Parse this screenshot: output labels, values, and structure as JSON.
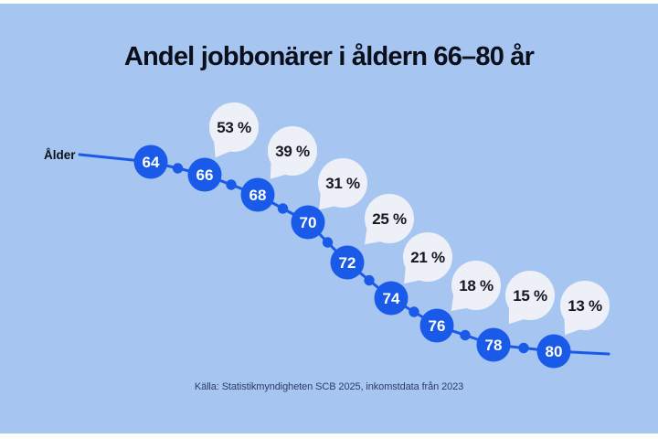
{
  "colors": {
    "background": "#a6c5f1",
    "frame": "#ffffff",
    "node_blue": "#1a5ae8",
    "line_blue": "#1a5ae8",
    "bubble_fill": "#eef0f8",
    "title_text": "#0b0f1a",
    "bubble_text": "#15181f",
    "node_text": "#ffffff",
    "source_text": "#2e3c63"
  },
  "chart_data": {
    "type": "line",
    "title": "Andel jobbonärer i åldern 66–80 år",
    "xlabel": "Ålder",
    "ylabel": "",
    "legend": null,
    "x_ticks": [
      "64",
      "66",
      "68",
      "70",
      "72",
      "74",
      "76",
      "78",
      "80"
    ],
    "points": [
      {
        "age": "64",
        "percent": null,
        "label": null
      },
      {
        "age": "66",
        "percent": 53,
        "label": "53 %"
      },
      {
        "age": "68",
        "percent": 39,
        "label": "39 %"
      },
      {
        "age": "70",
        "percent": 31,
        "label": "31 %"
      },
      {
        "age": "72",
        "percent": 25,
        "label": "25 %"
      },
      {
        "age": "74",
        "percent": 21,
        "label": "21 %"
      },
      {
        "age": "76",
        "percent": 18,
        "label": "18 %"
      },
      {
        "age": "78",
        "percent": 15,
        "label": "15 %"
      },
      {
        "age": "80",
        "percent": 13,
        "label": "13 %"
      }
    ],
    "source": "Källa: Statistikmyndigheten SCB 2025, inkomstdata från 2023"
  }
}
